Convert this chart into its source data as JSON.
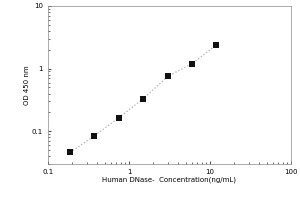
{
  "title": "",
  "xlabel": "Human DNase-  Concentration(ng/mL)",
  "ylabel": "OD 450 nm",
  "x_data": [
    0.188,
    0.375,
    0.75,
    1.5,
    3.0,
    6.0,
    12.0
  ],
  "y_data": [
    0.046,
    0.085,
    0.165,
    0.33,
    0.75,
    1.2,
    2.4
  ],
  "xlim": [
    0.1,
    100
  ],
  "ylim": [
    0.03,
    10
  ],
  "marker_color": "#111111",
  "marker_size": 4,
  "line_color": "#b0b0b0",
  "background_color": "#ffffff",
  "x_ticks": [
    0.1,
    1,
    10,
    100
  ],
  "x_tick_labels": [
    "0.1",
    "1",
    "10",
    "100"
  ],
  "y_ticks": [
    0.1,
    1,
    10
  ],
  "y_tick_labels": [
    "0.1",
    "1",
    "10"
  ]
}
